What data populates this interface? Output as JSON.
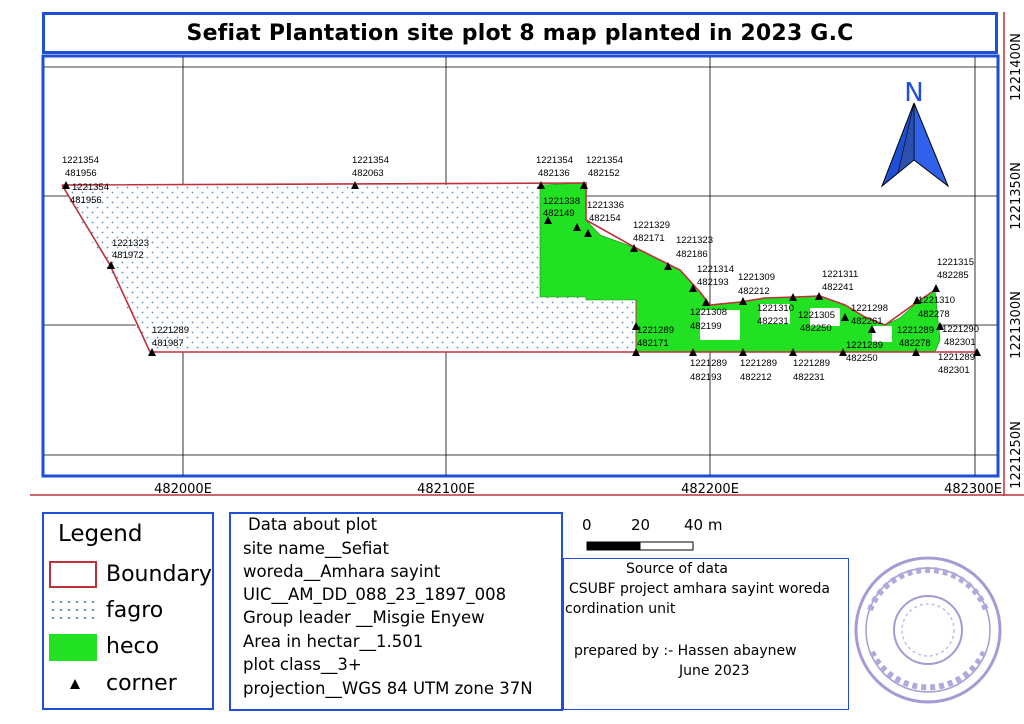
{
  "title": "Sefiat Plantation site plot 8 map planted in 2023 G.C",
  "map": {
    "easting_labels": [
      "482000E",
      "482100E",
      "482200E",
      "482300E"
    ],
    "northing_labels": [
      "1221400N",
      "1221350N",
      "1221300N",
      "1221250N"
    ],
    "north_arrow_label": "N",
    "corner_labels": [
      {
        "id": "c1",
        "lines": [
          "1221354",
          "481956"
        ]
      },
      {
        "id": "c2",
        "lines": [
          "1221354",
          "481956"
        ]
      },
      {
        "id": "c3",
        "lines": [
          "1221354",
          "482063"
        ]
      },
      {
        "id": "c4",
        "lines": [
          "1221354",
          "482136"
        ]
      },
      {
        "id": "c5",
        "lines": [
          "1221354",
          "482152"
        ]
      },
      {
        "id": "c6",
        "lines": [
          "1221338",
          "482149"
        ]
      },
      {
        "id": "c7",
        "lines": [
          "1221336",
          "482154"
        ]
      },
      {
        "id": "c8",
        "lines": [
          "1221329",
          "482171"
        ]
      },
      {
        "id": "c9",
        "lines": [
          "1221323",
          "481972"
        ]
      },
      {
        "id": "c10",
        "lines": [
          "1221323",
          "482186"
        ]
      },
      {
        "id": "c11",
        "lines": [
          "1221314",
          "482193"
        ]
      },
      {
        "id": "c12",
        "lines": [
          "1221309",
          "482212"
        ]
      },
      {
        "id": "c13",
        "lines": [
          "1221311",
          "482241"
        ]
      },
      {
        "id": "c14",
        "lines": [
          "1221315",
          "482285"
        ]
      },
      {
        "id": "c15",
        "lines": [
          "1221308",
          "482199"
        ]
      },
      {
        "id": "c16",
        "lines": [
          "1221310",
          "482231"
        ]
      },
      {
        "id": "c17",
        "lines": [
          "1221305",
          "482250"
        ]
      },
      {
        "id": "c18",
        "lines": [
          "1221298",
          "482261"
        ]
      },
      {
        "id": "c19",
        "lines": [
          "1221310",
          "482278"
        ]
      },
      {
        "id": "c20",
        "lines": [
          "1221289",
          "481987"
        ]
      },
      {
        "id": "c21",
        "lines": [
          "1221289",
          "482171"
        ]
      },
      {
        "id": "c22",
        "lines": [
          "1221289",
          "482250"
        ]
      },
      {
        "id": "c23",
        "lines": [
          "1221289",
          "482278"
        ]
      },
      {
        "id": "c24",
        "lines": [
          "1221290",
          "482301"
        ]
      },
      {
        "id": "c25",
        "lines": [
          "1221289",
          "482193"
        ]
      },
      {
        "id": "c26",
        "lines": [
          "1221289",
          "482212"
        ]
      },
      {
        "id": "c27",
        "lines": [
          "1221289",
          "482231"
        ]
      },
      {
        "id": "c28",
        "lines": [
          "1221289",
          "482301"
        ]
      }
    ]
  },
  "legend": {
    "title": "Legend",
    "items": [
      {
        "label": "Boundary",
        "color": "#c0303a"
      },
      {
        "label": "fagro",
        "color": "#5a8fc8"
      },
      {
        "label": "heco",
        "color": "#22e022"
      },
      {
        "label": "corner",
        "color": "#000000"
      }
    ]
  },
  "plot_info": {
    "heading": "Data about plot",
    "site_name": "site name__Sefiat",
    "woreda": "woreda__Amhara sayint",
    "uic": "UIC__AM_DD_088_23_1897_008",
    "group_leader": "Group leader __Misgie Enyew",
    "area": "Area in hectar__1.501",
    "plot_class": "plot class__3+",
    "projection": "projection__WGS 84 UTM zone 37N"
  },
  "scale_bar": {
    "ticks": [
      "0",
      "20",
      "40 m"
    ]
  },
  "source": {
    "heading": "Source of data",
    "line1": "CSUBF project amhara sayint woreda",
    "line2": "cordination unit",
    "prepared_by": "prepared by :- Hassen abaynew",
    "date": "June 2023"
  }
}
